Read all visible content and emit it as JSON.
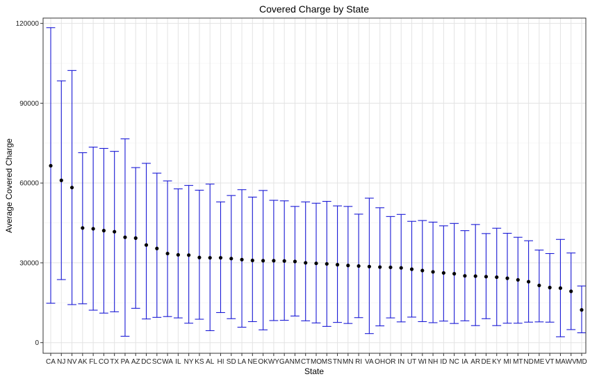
{
  "chart_data": {
    "type": "scatter",
    "title": "Covered Charge by State",
    "xlabel": "State",
    "ylabel": "Average Covered Charge",
    "ylim": [
      -4000,
      122000
    ],
    "yticks": [
      0,
      30000,
      60000,
      90000,
      120000
    ],
    "ytick_labels": [
      "0",
      "30000",
      "60000",
      "90000",
      "120000"
    ],
    "grid": true,
    "colors": {
      "errorbar": "#1a1ad6",
      "point": "#000000"
    },
    "series": [
      {
        "name": "mean",
        "values": [
          66500,
          61000,
          58300,
          43100,
          42800,
          42100,
          41700,
          39600,
          39300,
          36700,
          35400,
          33500,
          33000,
          32900,
          32000,
          31900,
          31900,
          31600,
          31200,
          30900,
          30800,
          30800,
          30700,
          30500,
          30000,
          29800,
          29600,
          29300,
          29000,
          28800,
          28600,
          28400,
          28300,
          28100,
          27600,
          27100,
          26600,
          26200,
          25900,
          25100,
          25000,
          24800,
          24600,
          24200,
          23600,
          22900,
          21500,
          20700,
          20500,
          19300,
          12300
        ]
      },
      {
        "name": "low",
        "values": [
          14800,
          23700,
          14300,
          14600,
          12200,
          11100,
          11600,
          2400,
          12900,
          8900,
          9500,
          9800,
          9300,
          7300,
          8800,
          4500,
          11300,
          9000,
          5800,
          7900,
          4800,
          8300,
          8400,
          10000,
          8200,
          7400,
          6100,
          7600,
          7200,
          9400,
          3400,
          6300,
          9300,
          7800,
          9600,
          7900,
          7500,
          8100,
          7200,
          8200,
          6400,
          9000,
          6400,
          7300,
          7300,
          7700,
          7800,
          7700,
          2200,
          4900,
          3700
        ]
      },
      {
        "name": "high",
        "values": [
          118400,
          98400,
          102300,
          71400,
          73500,
          73000,
          71900,
          76600,
          65800,
          67400,
          63700,
          60800,
          57800,
          59100,
          57300,
          59600,
          52900,
          55300,
          57500,
          54700,
          57200,
          53500,
          53300,
          51200,
          52900,
          52400,
          53100,
          51400,
          51200,
          48300,
          54300,
          50700,
          47400,
          48200,
          45600,
          45900,
          45300,
          43900,
          44800,
          42100,
          44400,
          41000,
          43000,
          41100,
          39600,
          38300,
          34800,
          33500,
          38800,
          33700,
          21300
        ]
      }
    ],
    "categories": [
      "CA",
      "NJ",
      "NV",
      "AK",
      "FL",
      "CO",
      "TX",
      "PA",
      "AZ",
      "DC",
      "SC",
      "WA",
      "IL",
      "NY",
      "KS",
      "AL",
      "HI",
      "SD",
      "LA",
      "NE",
      "OK",
      "WY",
      "GA",
      "NM",
      "CT",
      "MO",
      "MS",
      "TN",
      "MN",
      "RI",
      "VA",
      "OH",
      "OR",
      "IN",
      "UT",
      "WI",
      "NH",
      "ID",
      "NC",
      "IA",
      "AR",
      "DE",
      "KY",
      "MI",
      "MT",
      "ND",
      "ME",
      "VT",
      "MA",
      "WV",
      "MD"
    ]
  }
}
